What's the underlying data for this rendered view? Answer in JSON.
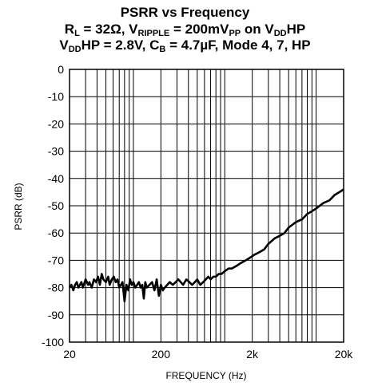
{
  "title": {
    "line1": "PSRR vs Frequency",
    "line2": {
      "a": "R",
      "a_sub": "L",
      "b": " = 32Ω, V",
      "b_sub": "RIPPLE",
      "c": " = 200mV",
      "c_sub": "PP",
      "d": " on V",
      "d_sub": "DD",
      "e": "HP"
    },
    "line3": {
      "a": "V",
      "a_sub": "DD",
      "b": "HP = 2.8V, C",
      "b_sub": "B",
      "c": " = 4.7µF, Mode 4, 7, HP"
    }
  },
  "chart_data": {
    "type": "line",
    "xlabel": "FREQUENCY (Hz)",
    "ylabel": "PSRR (dB)",
    "xscale": "log",
    "xlim": [
      20,
      20000
    ],
    "ylim": [
      -100,
      0
    ],
    "grid": true,
    "x_tick_labels": [
      "20",
      "200",
      "2k",
      "20k"
    ],
    "y_ticks": [
      0,
      -10,
      -20,
      -30,
      -40,
      -50,
      -60,
      -70,
      -80,
      -90,
      -100
    ],
    "y_tick_labels": [
      "0",
      "-10",
      "-20",
      "-30",
      "-40",
      "-50",
      "-60",
      "-70",
      "-80",
      "-90",
      "-100"
    ],
    "series": [
      {
        "x": [
          20,
          21,
          22,
          23,
          24,
          25,
          26,
          27,
          28,
          30,
          32,
          33,
          35,
          37,
          39,
          41,
          43,
          45,
          47,
          50,
          53,
          55,
          58,
          61,
          64,
          67,
          70,
          73,
          76,
          80,
          84,
          88,
          92,
          96,
          100,
          105,
          110,
          115,
          120,
          125,
          130,
          135,
          140,
          150,
          160,
          170,
          180,
          190,
          200,
          210,
          220,
          235,
          250,
          270,
          290,
          310,
          330,
          350,
          380,
          410,
          440,
          470,
          500,
          540,
          580,
          620,
          660,
          700,
          750,
          800,
          860,
          920,
          1000,
          1100,
          1200,
          1350,
          1500,
          1700,
          1900,
          2100,
          2400,
          2700,
          3000,
          3500,
          4000,
          4500,
          5000,
          6000,
          7000,
          8000,
          9000,
          10000,
          12000,
          14000,
          16000,
          18000,
          20000
        ],
        "y": [
          -80,
          -79,
          -81,
          -79,
          -78,
          -80,
          -79,
          -78,
          -80,
          -77,
          -79,
          -78,
          -80,
          -77,
          -78,
          -76,
          -79,
          -75,
          -77,
          -78,
          -76,
          -79,
          -77,
          -76,
          -78,
          -77,
          -80,
          -79,
          -78,
          -85,
          -79,
          -81,
          -77,
          -79,
          -78,
          -80,
          -79,
          -78,
          -80,
          -79,
          -84,
          -78,
          -80,
          -79,
          -78,
          -81,
          -77,
          -83,
          -79,
          -81,
          -80,
          -79,
          -78,
          -79,
          -78,
          -77,
          -78,
          -79,
          -77,
          -78,
          -79,
          -78,
          -77,
          -79,
          -78,
          -77,
          -76,
          -77,
          -76,
          -76,
          -75,
          -75,
          -74,
          -73,
          -73,
          -72,
          -71,
          -70,
          -69,
          -68,
          -67,
          -66,
          -64,
          -62,
          -61,
          -60,
          -58,
          -56,
          -55,
          -53,
          -52,
          -51,
          -49,
          -48,
          -46,
          -45,
          -44
        ]
      }
    ]
  }
}
